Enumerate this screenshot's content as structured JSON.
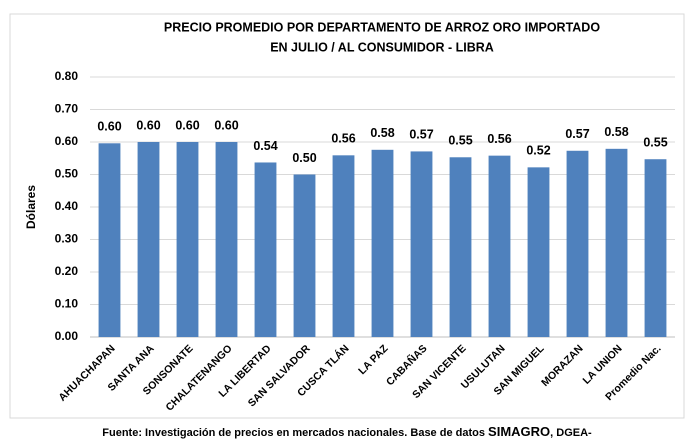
{
  "chart_data": {
    "type": "bar",
    "title": [
      "PRECIO PROMEDIO POR DEPARTAMENTO DE ARROZ ORO IMPORTADO",
      "EN JULIO / AL CONSUMIDOR - LIBRA"
    ],
    "y_label": "Dólares",
    "categories": [
      "AHUACHAPAN",
      "SANTA ANA",
      "SONSONATE",
      "CHALATENANGO",
      "LA LIBERTAD",
      "SAN SALVADOR",
      "CUSCA TLÁN",
      "LA PAZ",
      "CABAÑAS",
      "SAN VICENTE",
      "USULUTAN",
      "SAN MIGUEL",
      "MORAZAN",
      "LA UNION",
      "Promedio Nac."
    ],
    "values": [
      0.596,
      0.6,
      0.6,
      0.6,
      0.537,
      0.5,
      0.559,
      0.576,
      0.571,
      0.553,
      0.558,
      0.522,
      0.573,
      0.579,
      0.547
    ],
    "value_labels": [
      "0.60",
      "0.60",
      "0.60",
      "0.60",
      "0.54",
      "0.50",
      "0.56",
      "0.58",
      "0.57",
      "0.55",
      "0.56",
      "0.52",
      "0.57",
      "0.58",
      "0.55"
    ],
    "color": "#4f81bd",
    "ylim": [
      0,
      0.8
    ],
    "yticks": [
      {
        "value": 0,
        "label": "0.00"
      },
      {
        "value": 0.1,
        "label": "0.10"
      },
      {
        "value": 0.2,
        "label": "0.20"
      },
      {
        "value": 0.3,
        "label": "0.30"
      },
      {
        "value": 0.4,
        "label": "0.40"
      },
      {
        "value": 0.5,
        "label": "0.50"
      },
      {
        "value": 0.6,
        "label": "0.60"
      },
      {
        "value": 0.7,
        "label": "0.70"
      },
      {
        "value": 0.8,
        "label": "0.80"
      }
    ],
    "grid": true,
    "footer": [
      "Fuente: Investigación de precios en mercados nacionales. Base de datos ",
      "SIMAGRO",
      ", DGEA-"
    ]
  }
}
